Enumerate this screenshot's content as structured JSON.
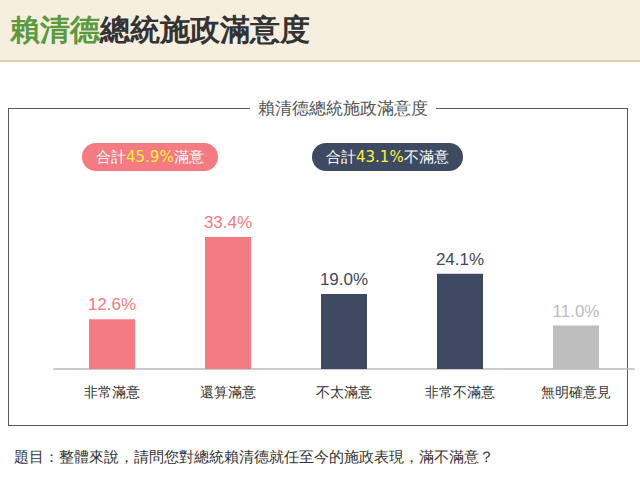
{
  "header": {
    "title_parts": [
      {
        "text": "賴清德",
        "color": "#5b9a3c"
      },
      {
        "text": "總統施政滿意度",
        "color": "#333333"
      }
    ]
  },
  "chart_data": {
    "type": "bar",
    "title": "賴清德總統施政滿意度",
    "categories": [
      "非常滿意",
      "還算滿意",
      "不太滿意",
      "非常不滿意",
      "無明確意見"
    ],
    "values": [
      12.6,
      33.4,
      19.0,
      24.1,
      11.0
    ],
    "value_labels": [
      "12.6%",
      "33.4%",
      "19.0%",
      "24.1%",
      "11.0%"
    ],
    "colors": [
      "#f47b81",
      "#f47b81",
      "#3e4a62",
      "#3e4a62",
      "#bdbdbd"
    ],
    "ylim": [
      0,
      40
    ],
    "grid": false,
    "data_labels": true,
    "tick_labels": "x",
    "annotations": [
      {
        "parts": [
          "合計",
          "45.9%",
          "滿意"
        ],
        "color": "#f47b81",
        "highlight_color": "#fff23a"
      },
      {
        "parts": [
          "合計",
          "43.1%",
          "不滿意"
        ],
        "color": "#3e4a62",
        "highlight_color": "#fff23a"
      }
    ]
  },
  "question": "題目：整體來說，請問您對總統賴清德就任至今的施政表現，滿不滿意？"
}
